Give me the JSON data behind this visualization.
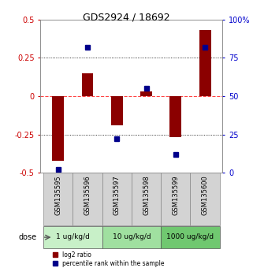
{
  "title": "GDS2924 / 18692",
  "samples": [
    "GSM135595",
    "GSM135596",
    "GSM135597",
    "GSM135598",
    "GSM135599",
    "GSM135600"
  ],
  "log2_ratio": [
    -0.42,
    0.15,
    -0.19,
    0.03,
    -0.27,
    0.43
  ],
  "percentile_rank": [
    2,
    82,
    22,
    55,
    12,
    82
  ],
  "bar_color": "#8B0000",
  "dot_color": "#00008B",
  "left_ylim": [
    -0.5,
    0.5
  ],
  "right_ylim": [
    0,
    100
  ],
  "left_yticks": [
    -0.5,
    -0.25,
    0,
    0.25,
    0.5
  ],
  "right_yticks": [
    0,
    25,
    50,
    75,
    100
  ],
  "dose_groups": [
    {
      "label": "1 ug/kg/d",
      "cols": [
        0,
        1
      ],
      "color": "#c8f0c8"
    },
    {
      "label": "10 ug/kg/d",
      "cols": [
        2,
        3
      ],
      "color": "#a0e0a0"
    },
    {
      "label": "1000 ug/kg/d",
      "cols": [
        4,
        5
      ],
      "color": "#70c870"
    }
  ],
  "legend_red_label": "log2 ratio",
  "legend_blue_label": "percentile rank within the sample",
  "xlabel_dose": "dose",
  "hline_zero_color": "#FF4444",
  "hline_25_color": "#000000",
  "bg_color": "#FFFFFF",
  "plot_bg_color": "#FFFFFF",
  "sample_label_bg": "#D3D3D3"
}
